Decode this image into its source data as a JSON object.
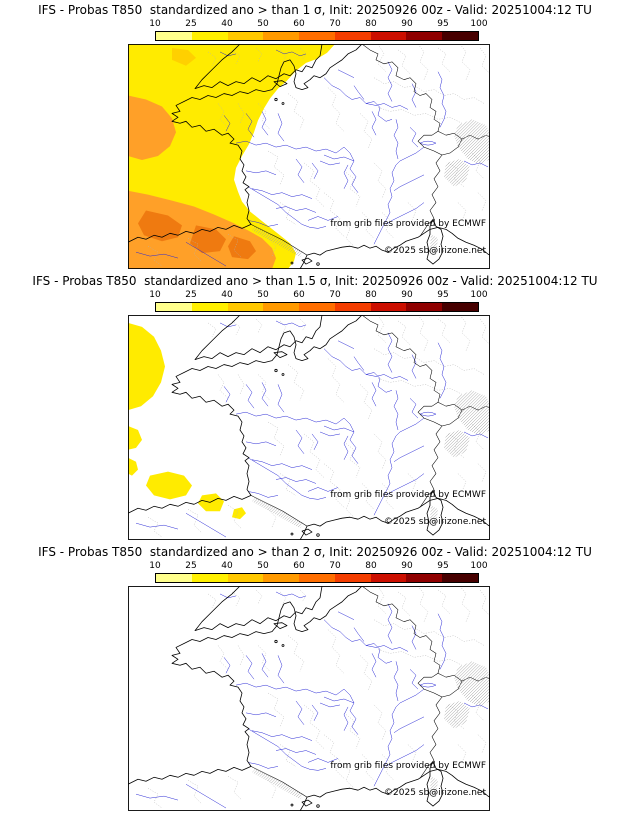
{
  "panels": [
    {
      "title": "IFS - Probas T850  standardized ano > than 1 σ, Init: 20250926 00z - Valid: 20251004:12 TU"
    },
    {
      "title": "IFS - Probas T850  standardized ano > than 1.5 σ, Init: 20250926 00z - Valid: 20251004:12 TU"
    },
    {
      "title": "IFS - Probas T850  standardized ano > than 2 σ, Init: 20250926 00z - Valid: 20251004:12 TU"
    }
  ],
  "credits": {
    "line1": "from grib files provided by ECMWF",
    "line2": "©2025 sb@irizone.net"
  },
  "colorbar": {
    "ticks": [
      "10",
      "25",
      "40",
      "50",
      "60",
      "70",
      "80",
      "90",
      "95",
      "100"
    ],
    "colors": [
      "#ffff8c",
      "#fff000",
      "#ffc800",
      "#ff9a00",
      "#ff6e00",
      "#f43d00",
      "#cc0f00",
      "#8f0000",
      "#470000"
    ]
  },
  "map_colors": {
    "coastline": "#000000",
    "rivers": "#2929d6",
    "admin_boundaries": "#b3b3b3",
    "relief_hatch": "#999999",
    "prob_shading_low": "#ffeb00",
    "prob_shading_mid": "#ffd000",
    "prob_shading_high": "#ffa028",
    "prob_shading_higher": "#ef7a10"
  }
}
